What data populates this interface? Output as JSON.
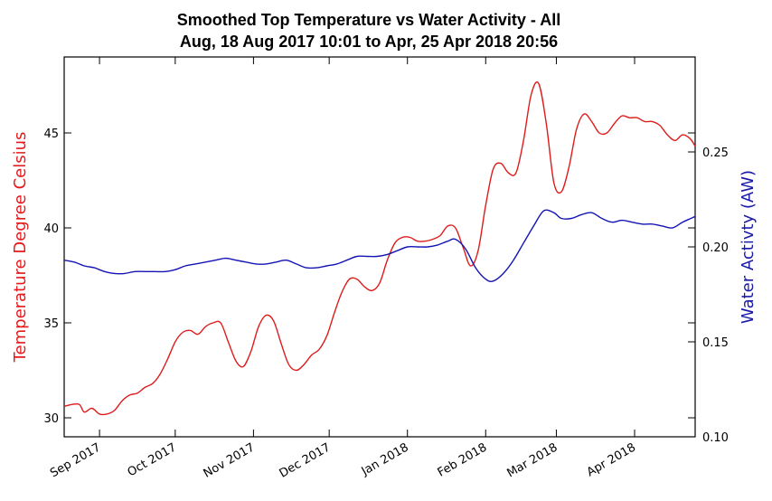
{
  "chart_data": {
    "type": "line",
    "title": [
      "Smoothed Top Temperature vs Water Activity - All",
      "Aug, 18 Aug 2017 10:01 to Apr, 25 Apr 2018 20:56"
    ],
    "ylabel_left": "Temperature Degree Celsius",
    "ylabel_right": "Water Activty (AW)",
    "x_range": [
      "2017-08-18",
      "2018-04-25"
    ],
    "x_ticks": [
      {
        "date": "2017-09-01",
        "label": "Sep 2017"
      },
      {
        "date": "2017-10-01",
        "label": "Oct 2017"
      },
      {
        "date": "2017-11-01",
        "label": "Nov 2017"
      },
      {
        "date": "2017-12-01",
        "label": "Dec 2017"
      },
      {
        "date": "2018-01-01",
        "label": "Jan 2018"
      },
      {
        "date": "2018-02-01",
        "label": "Feb 2018"
      },
      {
        "date": "2018-03-01",
        "label": "Mar 2018"
      },
      {
        "date": "2018-04-01",
        "label": "Apr 2018"
      }
    ],
    "ylim_left": [
      29.0,
      49.0
    ],
    "ylim_right": [
      0.1,
      0.3
    ],
    "yticks_left": [
      30,
      35,
      40,
      45
    ],
    "yticks_right": [
      0.1,
      0.15,
      0.2,
      0.25
    ],
    "colors": {
      "temperature": "#dd1c1c",
      "water_activity": "#1414b4"
    },
    "series": [
      {
        "axis": "left",
        "points": [
          [
            "2017-08-18",
            30.6
          ],
          [
            "2017-08-21",
            30.7
          ],
          [
            "2017-08-24",
            30.7
          ],
          [
            "2017-08-26",
            30.3
          ],
          [
            "2017-08-29",
            30.5
          ],
          [
            "2017-09-01",
            30.2
          ],
          [
            "2017-09-04",
            30.2
          ],
          [
            "2017-09-07",
            30.4
          ],
          [
            "2017-09-10",
            30.9
          ],
          [
            "2017-09-13",
            31.2
          ],
          [
            "2017-09-16",
            31.3
          ],
          [
            "2017-09-19",
            31.6
          ],
          [
            "2017-09-22",
            31.8
          ],
          [
            "2017-09-25",
            32.3
          ],
          [
            "2017-09-28",
            33.1
          ],
          [
            "2017-10-01",
            34.0
          ],
          [
            "2017-10-04",
            34.5
          ],
          [
            "2017-10-07",
            34.6
          ],
          [
            "2017-10-10",
            34.4
          ],
          [
            "2017-10-13",
            34.8
          ],
          [
            "2017-10-16",
            35.0
          ],
          [
            "2017-10-19",
            35.0
          ],
          [
            "2017-10-22",
            34.0
          ],
          [
            "2017-10-25",
            33.0
          ],
          [
            "2017-10-28",
            32.7
          ],
          [
            "2017-10-31",
            33.5
          ],
          [
            "2017-11-03",
            34.8
          ],
          [
            "2017-11-06",
            35.4
          ],
          [
            "2017-11-09",
            35.1
          ],
          [
            "2017-11-12",
            33.9
          ],
          [
            "2017-11-15",
            32.8
          ],
          [
            "2017-11-18",
            32.5
          ],
          [
            "2017-11-21",
            32.8
          ],
          [
            "2017-11-24",
            33.3
          ],
          [
            "2017-11-27",
            33.6
          ],
          [
            "2017-11-30",
            34.3
          ],
          [
            "2017-12-03",
            35.5
          ],
          [
            "2017-12-06",
            36.6
          ],
          [
            "2017-12-09",
            37.3
          ],
          [
            "2017-12-12",
            37.3
          ],
          [
            "2017-12-15",
            36.9
          ],
          [
            "2017-12-18",
            36.7
          ],
          [
            "2017-12-21",
            37.1
          ],
          [
            "2017-12-24",
            38.3
          ],
          [
            "2017-12-27",
            39.2
          ],
          [
            "2017-12-30",
            39.5
          ],
          [
            "2018-01-02",
            39.5
          ],
          [
            "2018-01-05",
            39.3
          ],
          [
            "2018-01-08",
            39.3
          ],
          [
            "2018-01-11",
            39.4
          ],
          [
            "2018-01-14",
            39.6
          ],
          [
            "2018-01-17",
            40.1
          ],
          [
            "2018-01-20",
            40.0
          ],
          [
            "2018-01-23",
            39.0
          ],
          [
            "2018-01-26",
            38.0
          ],
          [
            "2018-01-29",
            38.8
          ],
          [
            "2018-02-01",
            41.2
          ],
          [
            "2018-02-04",
            43.1
          ],
          [
            "2018-02-07",
            43.4
          ],
          [
            "2018-02-10",
            42.9
          ],
          [
            "2018-02-13",
            42.9
          ],
          [
            "2018-02-16",
            44.6
          ],
          [
            "2018-02-19",
            47.0
          ],
          [
            "2018-02-22",
            47.6
          ],
          [
            "2018-02-25",
            45.5
          ],
          [
            "2018-02-28",
            42.4
          ],
          [
            "2018-03-03",
            41.9
          ],
          [
            "2018-03-06",
            43.2
          ],
          [
            "2018-03-09",
            45.2
          ],
          [
            "2018-03-12",
            46.0
          ],
          [
            "2018-03-15",
            45.6
          ],
          [
            "2018-03-18",
            45.0
          ],
          [
            "2018-03-21",
            45.0
          ],
          [
            "2018-03-24",
            45.5
          ],
          [
            "2018-03-27",
            45.9
          ],
          [
            "2018-03-30",
            45.8
          ],
          [
            "2018-04-02",
            45.8
          ],
          [
            "2018-04-05",
            45.6
          ],
          [
            "2018-04-08",
            45.6
          ],
          [
            "2018-04-11",
            45.4
          ],
          [
            "2018-04-14",
            44.9
          ],
          [
            "2018-04-17",
            44.6
          ],
          [
            "2018-04-20",
            44.9
          ],
          [
            "2018-04-23",
            44.7
          ],
          [
            "2018-04-25",
            44.3
          ]
        ]
      },
      {
        "axis": "right",
        "points": [
          [
            "2017-08-18",
            0.193
          ],
          [
            "2017-08-22",
            0.192
          ],
          [
            "2017-08-26",
            0.19
          ],
          [
            "2017-08-30",
            0.189
          ],
          [
            "2017-09-03",
            0.187
          ],
          [
            "2017-09-07",
            0.186
          ],
          [
            "2017-09-11",
            0.186
          ],
          [
            "2017-09-15",
            0.187
          ],
          [
            "2017-09-19",
            0.187
          ],
          [
            "2017-09-23",
            0.187
          ],
          [
            "2017-09-27",
            0.187
          ],
          [
            "2017-10-01",
            0.188
          ],
          [
            "2017-10-05",
            0.19
          ],
          [
            "2017-10-09",
            0.191
          ],
          [
            "2017-10-13",
            0.192
          ],
          [
            "2017-10-17",
            0.193
          ],
          [
            "2017-10-21",
            0.194
          ],
          [
            "2017-10-25",
            0.193
          ],
          [
            "2017-10-29",
            0.192
          ],
          [
            "2017-11-02",
            0.191
          ],
          [
            "2017-11-06",
            0.191
          ],
          [
            "2017-11-10",
            0.192
          ],
          [
            "2017-11-14",
            0.193
          ],
          [
            "2017-11-18",
            0.191
          ],
          [
            "2017-11-22",
            0.189
          ],
          [
            "2017-11-26",
            0.189
          ],
          [
            "2017-11-30",
            0.19
          ],
          [
            "2017-12-04",
            0.191
          ],
          [
            "2017-12-08",
            0.193
          ],
          [
            "2017-12-12",
            0.195
          ],
          [
            "2017-12-16",
            0.195
          ],
          [
            "2017-12-20",
            0.195
          ],
          [
            "2017-12-24",
            0.196
          ],
          [
            "2017-12-28",
            0.198
          ],
          [
            "2018-01-01",
            0.2
          ],
          [
            "2018-01-05",
            0.2
          ],
          [
            "2018-01-09",
            0.2
          ],
          [
            "2018-01-13",
            0.201
          ],
          [
            "2018-01-17",
            0.203
          ],
          [
            "2018-01-20",
            0.204
          ],
          [
            "2018-01-24",
            0.199
          ],
          [
            "2018-01-28",
            0.189
          ],
          [
            "2018-02-01",
            0.183
          ],
          [
            "2018-02-04",
            0.182
          ],
          [
            "2018-02-08",
            0.186
          ],
          [
            "2018-02-12",
            0.193
          ],
          [
            "2018-02-16",
            0.202
          ],
          [
            "2018-02-20",
            0.211
          ],
          [
            "2018-02-24",
            0.219
          ],
          [
            "2018-02-28",
            0.218
          ],
          [
            "2018-03-03",
            0.215
          ],
          [
            "2018-03-07",
            0.215
          ],
          [
            "2018-03-11",
            0.217
          ],
          [
            "2018-03-15",
            0.218
          ],
          [
            "2018-03-19",
            0.215
          ],
          [
            "2018-03-23",
            0.213
          ],
          [
            "2018-03-27",
            0.214
          ],
          [
            "2018-03-31",
            0.213
          ],
          [
            "2018-04-04",
            0.212
          ],
          [
            "2018-04-08",
            0.212
          ],
          [
            "2018-04-12",
            0.211
          ],
          [
            "2018-04-16",
            0.21
          ],
          [
            "2018-04-20",
            0.213
          ],
          [
            "2018-04-25",
            0.216
          ]
        ]
      }
    ]
  }
}
